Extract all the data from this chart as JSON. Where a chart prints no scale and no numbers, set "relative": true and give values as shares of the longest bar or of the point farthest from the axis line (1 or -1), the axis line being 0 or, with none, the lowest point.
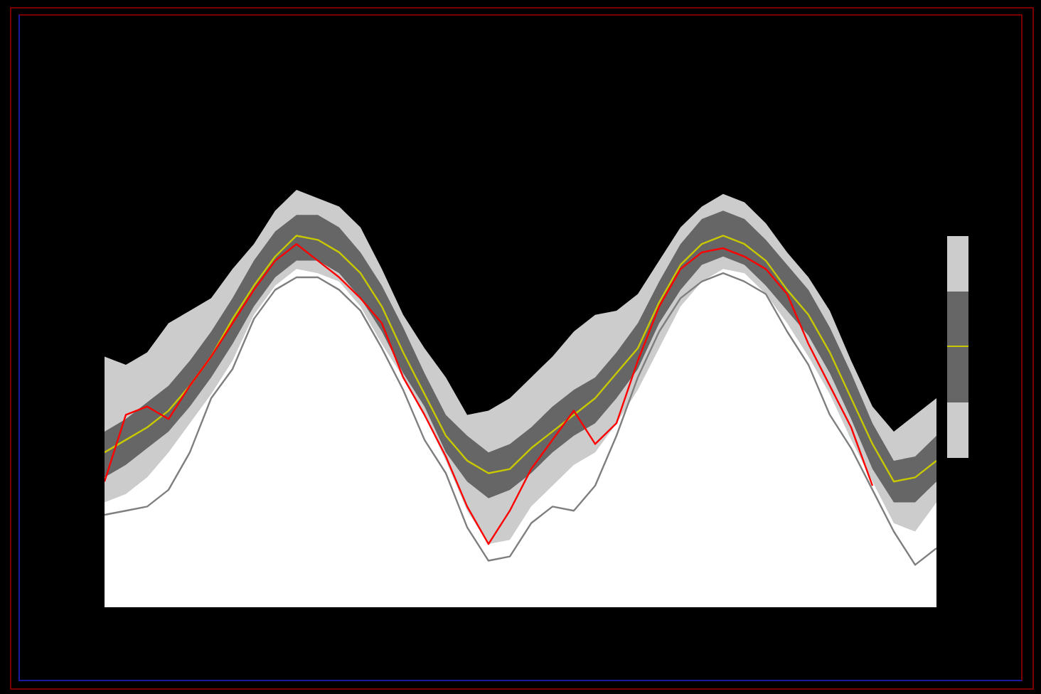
{
  "chart_data": {
    "type": "area",
    "relative": true,
    "grid": false,
    "tick_labels": false,
    "categories": [
      null,
      null,
      null,
      null,
      null,
      null,
      null,
      null,
      null,
      null,
      null,
      null,
      null,
      null,
      null,
      null,
      null,
      null,
      null,
      null,
      null,
      null,
      null,
      null,
      null,
      null,
      null,
      null,
      null,
      null,
      null,
      null,
      null,
      null,
      null,
      null,
      null,
      null,
      null,
      null
    ],
    "series": [
      {
        "color": "#cccccc",
        "values": [
          0.6,
          0.58,
          0.61,
          0.68,
          0.71,
          0.74,
          0.81,
          0.87,
          0.95,
          1.0,
          0.98,
          0.96,
          0.91,
          0.81,
          0.7,
          0.62,
          0.55,
          0.46,
          0.47,
          0.5,
          0.55,
          0.6,
          0.66,
          0.7,
          0.71,
          0.75,
          0.83,
          0.91,
          0.96,
          0.99,
          0.97,
          0.92,
          0.85,
          0.79,
          0.71,
          0.59,
          0.48,
          0.42,
          0.46,
          0.5
        ]
      },
      {
        "color": "#ffffff",
        "values": [
          0.25,
          0.27,
          0.31,
          0.37,
          0.44,
          0.51,
          0.59,
          0.7,
          0.77,
          0.81,
          0.8,
          0.78,
          0.72,
          0.63,
          0.55,
          0.46,
          0.35,
          0.23,
          0.15,
          0.16,
          0.24,
          0.29,
          0.34,
          0.37,
          0.44,
          0.52,
          0.62,
          0.72,
          0.78,
          0.81,
          0.8,
          0.75,
          0.68,
          0.6,
          0.51,
          0.4,
          0.3,
          0.2,
          0.18,
          0.25
        ]
      },
      {
        "type": "line",
        "color": "#7f7f7f",
        "values": [
          0.22,
          0.23,
          0.24,
          0.28,
          0.37,
          0.5,
          0.57,
          0.69,
          0.76,
          0.79,
          0.79,
          0.76,
          0.71,
          0.62,
          0.52,
          0.4,
          0.32,
          0.19,
          0.11,
          0.12,
          0.2,
          0.24,
          0.23,
          0.29,
          0.41,
          0.55,
          0.66,
          0.74,
          0.78,
          0.8,
          0.78,
          0.75,
          0.66,
          0.58,
          0.46,
          0.38,
          0.28,
          0.18,
          0.1,
          0.14
        ]
      },
      {
        "type": "line",
        "color": "#c8c800",
        "values": [
          0.37,
          0.4,
          0.43,
          0.47,
          0.53,
          0.6,
          0.69,
          0.77,
          0.84,
          0.89,
          0.88,
          0.85,
          0.8,
          0.72,
          0.61,
          0.51,
          0.41,
          0.35,
          0.32,
          0.33,
          0.38,
          0.42,
          0.46,
          0.5,
          0.56,
          0.62,
          0.73,
          0.82,
          0.87,
          0.89,
          0.87,
          0.83,
          0.76,
          0.7,
          0.61,
          0.5,
          0.39,
          0.3,
          0.31,
          0.35
        ],
        "lower": [
          0.31,
          0.34,
          0.38,
          0.42,
          0.48,
          0.55,
          0.63,
          0.72,
          0.79,
          0.83,
          0.83,
          0.8,
          0.74,
          0.66,
          0.56,
          0.48,
          0.37,
          0.3,
          0.26,
          0.28,
          0.32,
          0.37,
          0.41,
          0.44,
          0.5,
          0.57,
          0.68,
          0.76,
          0.82,
          0.84,
          0.82,
          0.77,
          0.71,
          0.65,
          0.56,
          0.45,
          0.33,
          0.25,
          0.25,
          0.3
        ],
        "upper": [
          0.42,
          0.45,
          0.49,
          0.53,
          0.59,
          0.66,
          0.74,
          0.83,
          0.9,
          0.94,
          0.94,
          0.91,
          0.85,
          0.77,
          0.67,
          0.56,
          0.46,
          0.41,
          0.37,
          0.39,
          0.43,
          0.48,
          0.52,
          0.55,
          0.61,
          0.68,
          0.78,
          0.87,
          0.93,
          0.95,
          0.93,
          0.88,
          0.82,
          0.76,
          0.67,
          0.56,
          0.44,
          0.35,
          0.36,
          0.41
        ]
      },
      {
        "type": "line",
        "color": "#ff0000",
        "values": [
          0.3,
          0.46,
          0.48,
          0.45,
          0.53,
          0.6,
          0.68,
          0.76,
          0.83,
          0.87,
          0.83,
          0.79,
          0.74,
          0.68,
          0.55,
          0.46,
          0.36,
          0.24,
          0.15,
          0.23,
          0.33,
          0.4,
          0.47,
          0.39,
          0.44,
          0.59,
          0.72,
          0.81,
          0.85,
          0.86,
          0.84,
          0.81,
          0.75,
          0.63,
          0.53,
          0.43,
          0.29,
          null,
          null,
          null
        ]
      }
    ]
  }
}
